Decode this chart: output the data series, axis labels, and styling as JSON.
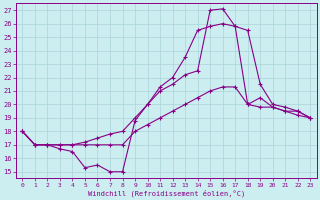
{
  "xlabel": "Windchill (Refroidissement éolien,°C)",
  "bg_color": "#cceef0",
  "line_color": "#880088",
  "grid_color": "#aad4d8",
  "xlim": [
    -0.5,
    23.5
  ],
  "ylim": [
    14.5,
    27.5
  ],
  "xticks": [
    0,
    1,
    2,
    3,
    4,
    5,
    6,
    7,
    8,
    9,
    10,
    11,
    12,
    13,
    14,
    15,
    16,
    17,
    18,
    19,
    20,
    21,
    22,
    23
  ],
  "yticks": [
    15,
    16,
    17,
    18,
    19,
    20,
    21,
    22,
    23,
    24,
    25,
    26,
    27
  ],
  "curve1_x": [
    0,
    1,
    2,
    3,
    4,
    5,
    6,
    7,
    8,
    9,
    10,
    11,
    12,
    13,
    14,
    15,
    16,
    17,
    18,
    19,
    20,
    21,
    22,
    23
  ],
  "curve1_y": [
    18,
    17,
    17,
    16.7,
    16.5,
    15.3,
    15.5,
    15.0,
    15.0,
    18.8,
    20.0,
    21.0,
    21.5,
    22.2,
    22.5,
    27.0,
    27.1,
    25.8,
    20.0,
    20.5,
    19.8,
    19.5,
    19.5,
    19.0
  ],
  "curve2_x": [
    0,
    1,
    2,
    3,
    4,
    5,
    6,
    7,
    8,
    9,
    10,
    11,
    12,
    13,
    14,
    15,
    16,
    17,
    18,
    19,
    20,
    21,
    22,
    23
  ],
  "curve2_y": [
    18,
    17,
    17,
    17,
    17,
    17,
    17,
    17,
    17,
    18,
    18.5,
    19.0,
    19.5,
    20.0,
    20.5,
    21.0,
    21.3,
    21.3,
    20.0,
    19.8,
    19.8,
    19.5,
    19.2,
    19.0
  ],
  "curve3_x": [
    0,
    1,
    2,
    3,
    4,
    5,
    6,
    7,
    8,
    9,
    10,
    11,
    12,
    13,
    14,
    15,
    16,
    17,
    18,
    19,
    20,
    21,
    22,
    23
  ],
  "curve3_y": [
    18,
    17,
    17,
    17,
    17,
    17.2,
    17.5,
    17.8,
    18.0,
    19.0,
    20.0,
    21.3,
    22.0,
    23.5,
    25.5,
    25.8,
    26.0,
    25.8,
    25.5,
    21.5,
    20.0,
    19.8,
    19.5,
    19.0
  ]
}
